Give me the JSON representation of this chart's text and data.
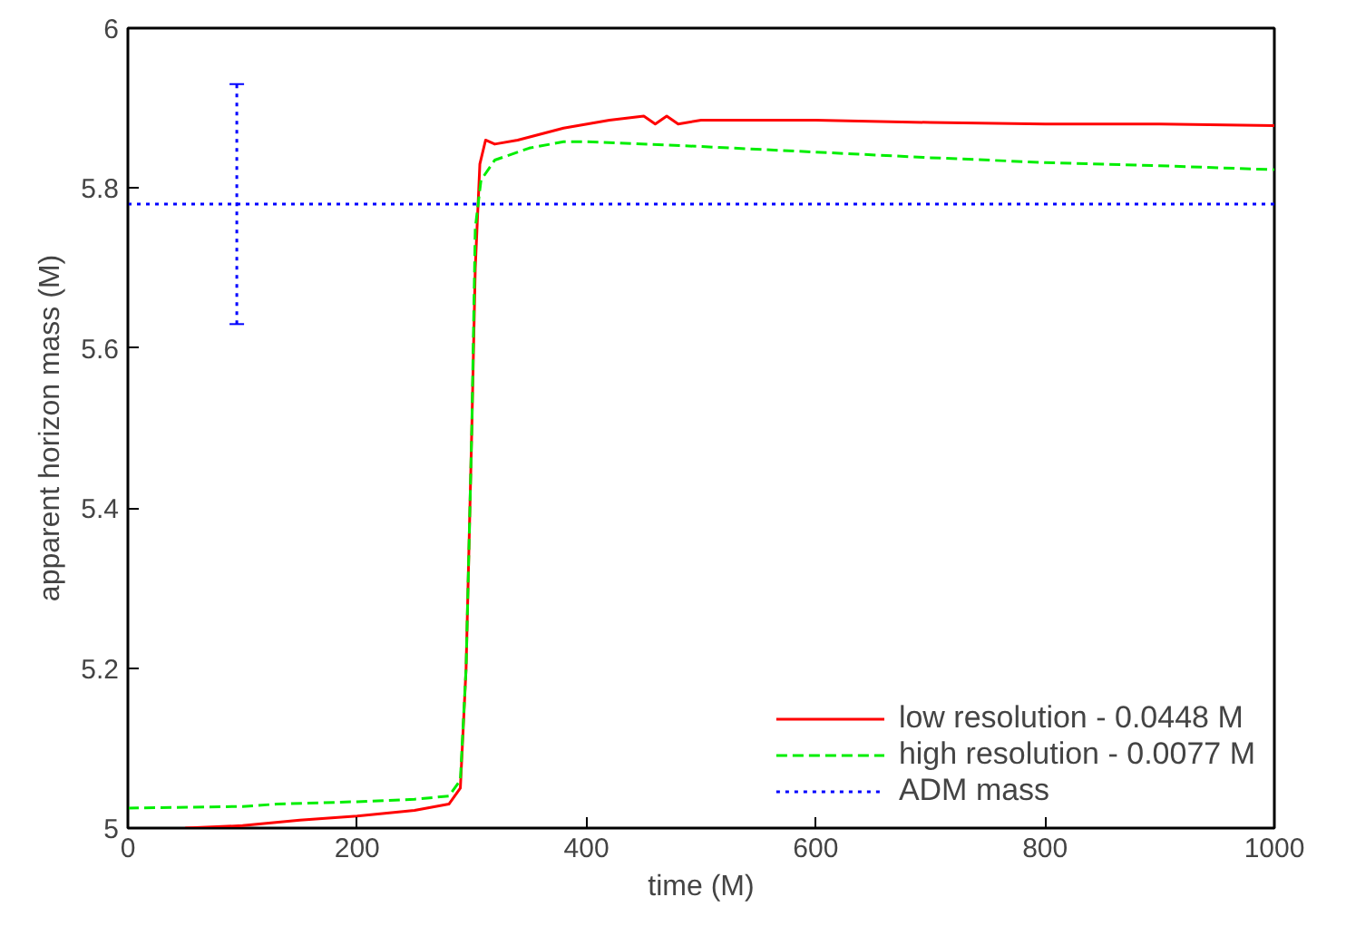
{
  "chart_data": {
    "type": "line",
    "xlabel": "time (M)",
    "ylabel": "apparent horizon mass (M)",
    "xlim": [
      0,
      1000
    ],
    "ylim": [
      5,
      6
    ],
    "xticks": [
      0,
      200,
      400,
      600,
      800,
      1000
    ],
    "yticks": [
      5,
      5.2,
      5.4,
      5.6,
      5.8,
      6
    ],
    "grid": false,
    "legend": "bottom right",
    "series": [
      {
        "name": "low resolution - 0.0448 M",
        "color": "#ff0000",
        "line_style": "solid",
        "x": [
          50,
          100,
          150,
          200,
          250,
          280,
          290,
          295,
          300,
          303,
          307,
          312,
          320,
          340,
          380,
          420,
          450,
          460,
          470,
          480,
          500,
          600,
          700,
          800,
          900,
          1000
        ],
        "values": [
          5.0,
          5.003,
          5.01,
          5.015,
          5.022,
          5.03,
          5.05,
          5.2,
          5.5,
          5.7,
          5.83,
          5.86,
          5.855,
          5.86,
          5.875,
          5.885,
          5.89,
          5.88,
          5.89,
          5.88,
          5.885,
          5.885,
          5.882,
          5.88,
          5.88,
          5.878
        ]
      },
      {
        "name": "high resolution - 0.0077 M",
        "color": "#00ee00",
        "line_style": "dashed",
        "x": [
          0,
          100,
          130,
          200,
          250,
          280,
          290,
          295,
          300,
          303,
          308,
          320,
          350,
          380,
          400,
          500,
          600,
          700,
          800,
          900,
          1000
        ],
        "values": [
          5.025,
          5.027,
          5.03,
          5.033,
          5.036,
          5.04,
          5.06,
          5.2,
          5.5,
          5.75,
          5.81,
          5.835,
          5.85,
          5.858,
          5.858,
          5.852,
          5.845,
          5.838,
          5.832,
          5.828,
          5.823
        ]
      },
      {
        "name": "ADM mass",
        "color": "#0000ff",
        "line_style": "dotted",
        "x": [
          0,
          95,
          1000
        ],
        "values": [
          5.78,
          5.78,
          5.78
        ],
        "errors": [
          null,
          0.15,
          null
        ]
      }
    ]
  }
}
